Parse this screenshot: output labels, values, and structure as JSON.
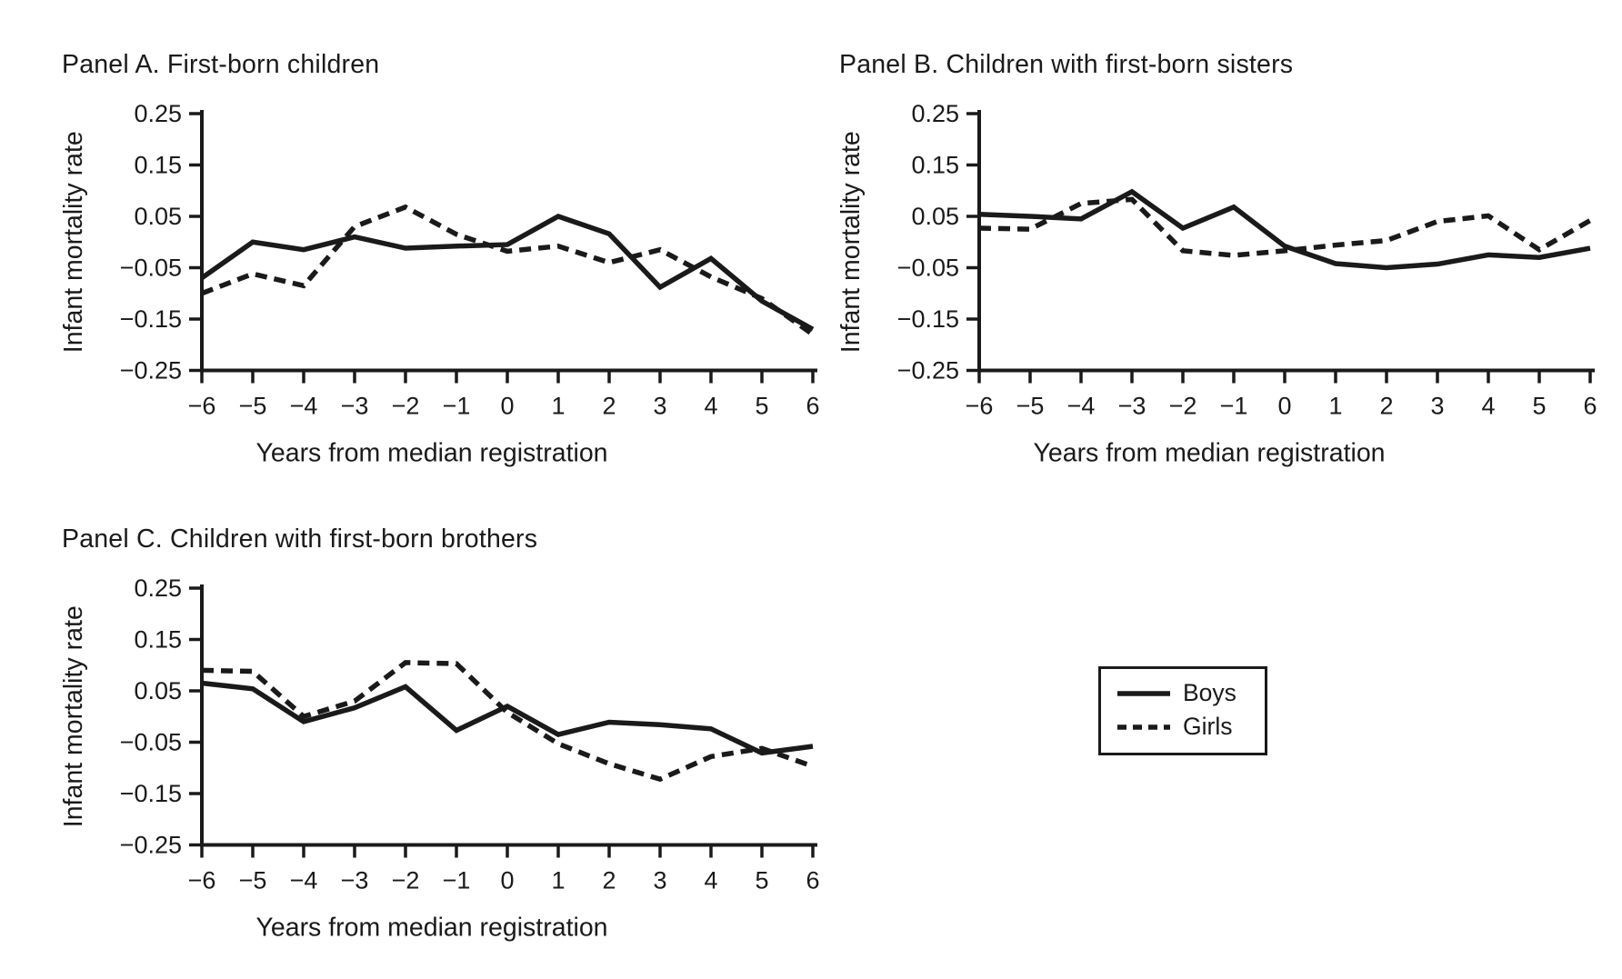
{
  "figure": {
    "background": "#ffffff",
    "line_color": "#1a1a1a",
    "text_color": "#1a1a1a"
  },
  "legend": {
    "items": [
      {
        "label": "Boys",
        "style": "solid"
      },
      {
        "label": "Girls",
        "style": "dashed"
      }
    ]
  },
  "chart_data": [
    {
      "type": "line",
      "title": "Panel A. First-born children",
      "xlabel": "Years from median registration",
      "ylabel": "Infant mortality rate",
      "x": [
        -6,
        -5,
        -4,
        -3,
        -2,
        -1,
        0,
        1,
        2,
        3,
        4,
        5,
        6
      ],
      "x_tick_labels": [
        "−6",
        "−5",
        "−4",
        "−3",
        "−2",
        "−1",
        "0",
        "1",
        "2",
        "3",
        "4",
        "5",
        "6"
      ],
      "y_ticks": [
        0.25,
        0.15,
        0.05,
        -0.05,
        -0.15,
        -0.25
      ],
      "y_tick_labels": [
        "0.25",
        "0.15",
        "0.05",
        "−0.05",
        "−0.15",
        "−0.25"
      ],
      "ylim": [
        -0.25,
        0.25
      ],
      "grid": false,
      "series": [
        {
          "name": "Boys",
          "style": "solid",
          "values": [
            -0.07,
            0.0,
            -0.015,
            0.01,
            -0.012,
            -0.008,
            -0.005,
            0.05,
            0.016,
            -0.088,
            -0.032,
            -0.115,
            -0.17
          ]
        },
        {
          "name": "Girls",
          "style": "dashed",
          "values": [
            -0.1,
            -0.062,
            -0.085,
            0.03,
            0.068,
            0.015,
            -0.018,
            -0.008,
            -0.04,
            -0.015,
            -0.068,
            -0.11,
            -0.18
          ]
        }
      ]
    },
    {
      "type": "line",
      "title": "Panel B. Children with first-born sisters",
      "xlabel": "Years from median registration",
      "ylabel": "Infant mortality rate",
      "x": [
        -6,
        -5,
        -4,
        -3,
        -2,
        -1,
        0,
        1,
        2,
        3,
        4,
        5,
        6
      ],
      "x_tick_labels": [
        "−6",
        "−5",
        "−4",
        "−3",
        "−2",
        "−1",
        "0",
        "1",
        "2",
        "3",
        "4",
        "5",
        "6"
      ],
      "y_ticks": [
        0.25,
        0.15,
        0.05,
        -0.05,
        -0.15,
        -0.25
      ],
      "y_tick_labels": [
        "0.25",
        "0.15",
        "0.05",
        "−0.05",
        "−0.15",
        "−0.25"
      ],
      "ylim": [
        -0.25,
        0.25
      ],
      "grid": false,
      "series": [
        {
          "name": "Boys",
          "style": "solid",
          "values": [
            0.054,
            0.05,
            0.045,
            0.098,
            0.027,
            0.068,
            -0.008,
            -0.042,
            -0.05,
            -0.043,
            -0.025,
            -0.03,
            -0.012
          ]
        },
        {
          "name": "Girls",
          "style": "dashed",
          "values": [
            0.027,
            0.025,
            0.075,
            0.083,
            -0.017,
            -0.026,
            -0.017,
            -0.006,
            0.003,
            0.04,
            0.051,
            -0.015,
            0.042
          ]
        }
      ]
    },
    {
      "type": "line",
      "title": "Panel C. Children with first-born brothers",
      "xlabel": "Years from median registration",
      "ylabel": "Infant mortality rate",
      "x": [
        -6,
        -5,
        -4,
        -3,
        -2,
        -1,
        0,
        1,
        2,
        3,
        4,
        5,
        6
      ],
      "x_tick_labels": [
        "−6",
        "−5",
        "−4",
        "−3",
        "−2",
        "−1",
        "0",
        "1",
        "2",
        "3",
        "4",
        "5",
        "6"
      ],
      "y_ticks": [
        0.25,
        0.15,
        0.05,
        -0.05,
        -0.15,
        -0.25
      ],
      "y_tick_labels": [
        "0.25",
        "0.15",
        "0.05",
        "−0.05",
        "−0.15",
        "−0.25"
      ],
      "ylim": [
        -0.25,
        0.25
      ],
      "grid": false,
      "series": [
        {
          "name": "Boys",
          "style": "solid",
          "values": [
            0.065,
            0.054,
            -0.01,
            0.017,
            0.058,
            -0.027,
            0.02,
            -0.035,
            -0.011,
            -0.016,
            -0.024,
            -0.071,
            -0.058
          ]
        },
        {
          "name": "Girls",
          "style": "dashed",
          "values": [
            0.09,
            0.088,
            0.0,
            0.03,
            0.105,
            0.103,
            0.008,
            -0.053,
            -0.092,
            -0.122,
            -0.078,
            -0.062,
            -0.097
          ]
        }
      ]
    }
  ]
}
